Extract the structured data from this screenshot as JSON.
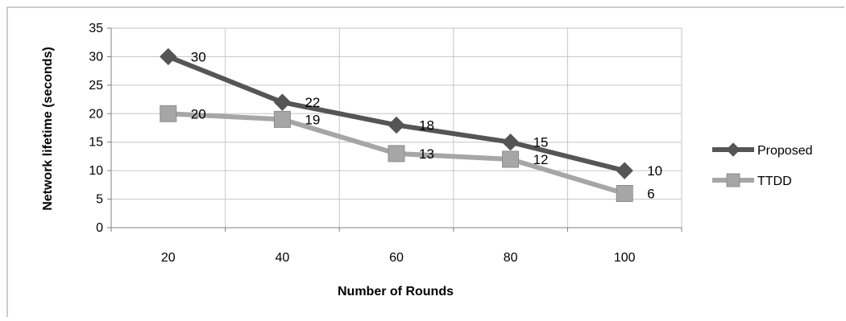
{
  "chart_data": {
    "type": "line",
    "title": "",
    "xlabel": "Number of Rounds",
    "ylabel": "Network lifetime (seconds)",
    "categories": [
      "20",
      "40",
      "60",
      "80",
      "100"
    ],
    "ylim": [
      0,
      35
    ],
    "yticks": [
      "0",
      "5",
      "10",
      "15",
      "20",
      "25",
      "30",
      "35"
    ],
    "grid": true,
    "legend_position": "right",
    "series": [
      {
        "name": "Proposed",
        "values": [
          30,
          22,
          18,
          15,
          10
        ],
        "value_labels": [
          "30",
          "22",
          "18",
          "15",
          "10"
        ],
        "color": "#555555",
        "marker": "diamond"
      },
      {
        "name": "TTDD",
        "values": [
          20,
          19,
          13,
          12,
          6
        ],
        "value_labels": [
          "20",
          "19",
          "13",
          "12",
          "6"
        ],
        "color": "#a6a6a6",
        "marker": "square"
      }
    ]
  }
}
